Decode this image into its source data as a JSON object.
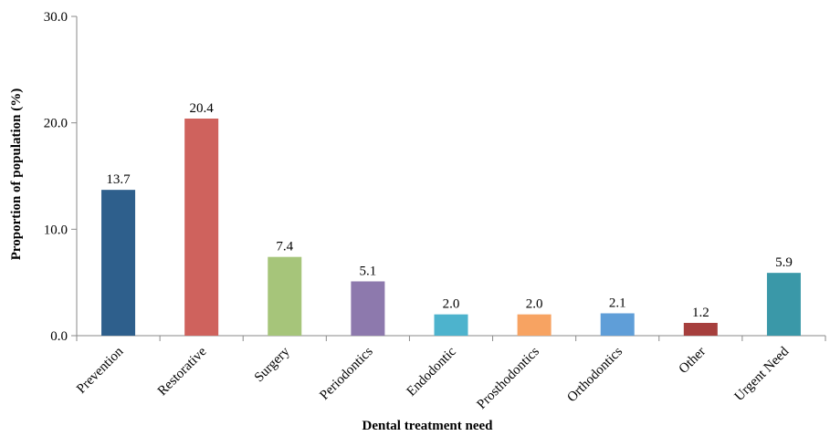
{
  "chart_data": {
    "type": "bar",
    "title": "",
    "xlabel": "Dental treatment need",
    "ylabel": "Proportion of population (%)",
    "ylim": [
      0,
      30
    ],
    "yticks": [
      "0.0",
      "10.0",
      "20.0",
      "30.0"
    ],
    "grid": false,
    "legend": "none",
    "categories": [
      "Prevention",
      "Restorative",
      "Surgery",
      "Periodontics",
      "Endodontic",
      "Prosthodontics",
      "Orthodontics",
      "Other",
      "Urgent Need"
    ],
    "values": [
      13.7,
      20.4,
      7.4,
      5.1,
      2.0,
      2.0,
      2.1,
      1.2,
      5.9
    ],
    "value_labels": [
      "13.7",
      "20.4",
      "7.4",
      "5.1",
      "2.0",
      "2.0",
      "2.1",
      "1.2",
      "5.9"
    ],
    "colors": [
      "#2e5f8c",
      "#cf625d",
      "#a6c57a",
      "#8d79ad",
      "#4db3cd",
      "#f7a362",
      "#5f9ed8",
      "#a63f3d",
      "#3a98a8"
    ],
    "axis_color": "#8a8a8a"
  }
}
